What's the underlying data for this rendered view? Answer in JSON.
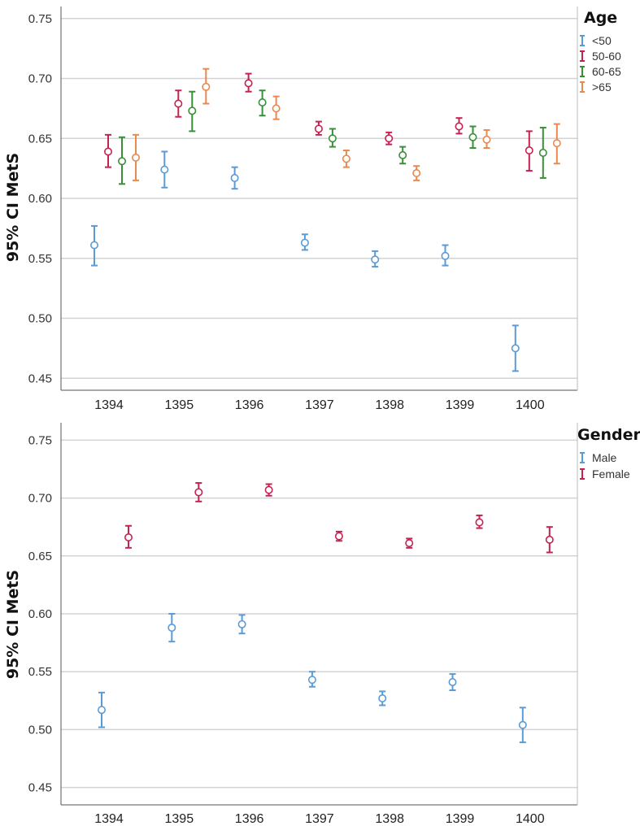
{
  "chart_data": [
    {
      "type": "errorbar",
      "title": "",
      "xlabel": "",
      "ylabel": "95% CI MetS",
      "ylim": [
        0.44,
        0.76
      ],
      "yticks": [
        "0.45",
        "0.50",
        "0.55",
        "0.60",
        "0.65",
        "0.70",
        "0.75"
      ],
      "categories": [
        "1394",
        "1395",
        "1396",
        "1397",
        "1398",
        "1399",
        "1400"
      ],
      "legend": {
        "title": "Age",
        "position": "top-right"
      },
      "series": [
        {
          "name": "<50",
          "color": "#5b9bd5",
          "mean": [
            0.561,
            0.624,
            0.617,
            0.563,
            0.549,
            0.552,
            0.475
          ],
          "lower": [
            0.544,
            0.609,
            0.608,
            0.557,
            0.543,
            0.544,
            0.456
          ],
          "upper": [
            0.577,
            0.639,
            0.626,
            0.57,
            0.556,
            0.561,
            0.494
          ]
        },
        {
          "name": "50-60",
          "color": "#c62251",
          "mean": [
            0.639,
            0.679,
            0.696,
            0.658,
            0.65,
            0.66,
            0.64
          ],
          "lower": [
            0.626,
            0.668,
            0.689,
            0.653,
            0.645,
            0.654,
            0.623
          ],
          "upper": [
            0.653,
            0.69,
            0.704,
            0.664,
            0.655,
            0.667,
            0.656
          ]
        },
        {
          "name": "60-65",
          "color": "#3a8f3a",
          "mean": [
            0.631,
            0.673,
            0.68,
            0.65,
            0.636,
            0.651,
            0.638
          ],
          "lower": [
            0.612,
            0.656,
            0.669,
            0.643,
            0.629,
            0.642,
            0.617
          ],
          "upper": [
            0.651,
            0.689,
            0.69,
            0.658,
            0.643,
            0.66,
            0.659
          ]
        },
        {
          "name": ">65",
          "color": "#e8894f",
          "mean": [
            0.634,
            0.693,
            0.675,
            0.633,
            0.621,
            0.649,
            0.646
          ],
          "lower": [
            0.615,
            0.679,
            0.666,
            0.626,
            0.615,
            0.642,
            0.629
          ],
          "upper": [
            0.653,
            0.708,
            0.685,
            0.64,
            0.627,
            0.657,
            0.662
          ]
        }
      ]
    },
    {
      "type": "errorbar",
      "title": "",
      "xlabel": "",
      "ylabel": "95% CI MetS",
      "ylim": [
        0.435,
        0.765
      ],
      "yticks": [
        "0.45",
        "0.50",
        "0.55",
        "0.60",
        "0.65",
        "0.70",
        "0.75"
      ],
      "categories": [
        "1394",
        "1395",
        "1396",
        "1397",
        "1398",
        "1399",
        "1400"
      ],
      "legend": {
        "title": "Gender",
        "position": "top-right"
      },
      "series": [
        {
          "name": "Male",
          "color": "#5b9bd5",
          "mean": [
            0.517,
            0.588,
            0.591,
            0.543,
            0.527,
            0.541,
            0.504
          ],
          "lower": [
            0.502,
            0.576,
            0.583,
            0.537,
            0.521,
            0.534,
            0.489
          ],
          "upper": [
            0.532,
            0.6,
            0.599,
            0.55,
            0.533,
            0.548,
            0.519
          ]
        },
        {
          "name": "Female",
          "color": "#c62251",
          "mean": [
            0.666,
            0.705,
            0.707,
            0.667,
            0.661,
            0.679,
            0.664
          ],
          "lower": [
            0.657,
            0.697,
            0.702,
            0.663,
            0.657,
            0.674,
            0.653
          ],
          "upper": [
            0.676,
            0.713,
            0.712,
            0.671,
            0.665,
            0.685,
            0.675
          ]
        }
      ]
    }
  ]
}
